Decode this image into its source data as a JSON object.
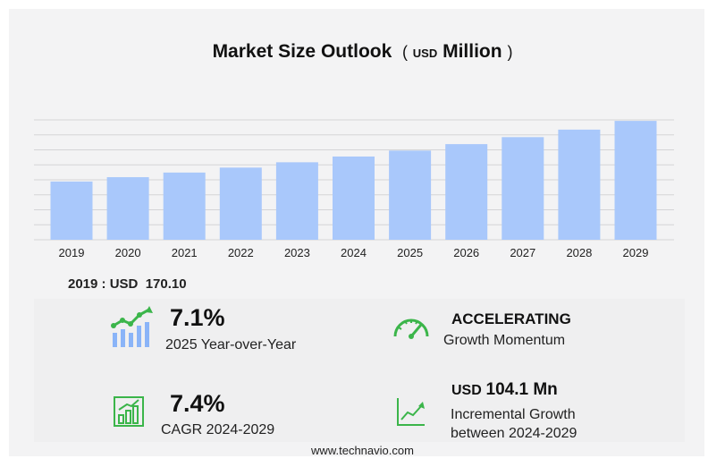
{
  "title": {
    "main": "Market Size Outlook",
    "open_paren": "(",
    "unit_small": "USD",
    "unit_big": "Million",
    "close_paren": ")"
  },
  "baseline": {
    "label": "2019 : USD",
    "value": "170.10"
  },
  "stats": {
    "yoy": {
      "value": "7.1%",
      "label": "2025 Year-over-Year"
    },
    "momentum": {
      "value": "ACCELERATING",
      "label": "Growth Momentum"
    },
    "cagr": {
      "value": "7.4%",
      "label": "CAGR 2024-2029"
    },
    "incremental": {
      "currency": "USD",
      "value": "104.1 Mn",
      "label_line1": "Incremental Growth",
      "label_line2": "between 2024-2029"
    }
  },
  "footer": {
    "source": "www.technavio.com"
  },
  "colors": {
    "bar": "#a9c8fb",
    "icon_green": "#3bb54a",
    "icon_blue": "#8ab4f8",
    "grid": "#d4d4d6"
  },
  "icons": {
    "yoy": "bar-line-growth-icon",
    "momentum": "speedometer-icon",
    "cagr": "bar-chart-up-icon",
    "incremental": "line-chart-up-icon"
  },
  "chart_data": {
    "type": "bar",
    "categories": [
      "2019",
      "2020",
      "2021",
      "2022",
      "2023",
      "2024",
      "2025",
      "2026",
      "2027",
      "2028",
      "2029"
    ],
    "values": [
      170.1,
      182.7,
      196.2,
      210.7,
      226.3,
      243.0,
      260.3,
      279.2,
      299.6,
      321.6,
      347.1
    ],
    "ylim": [
      0,
      350
    ],
    "grid": true,
    "legend": "none"
  }
}
